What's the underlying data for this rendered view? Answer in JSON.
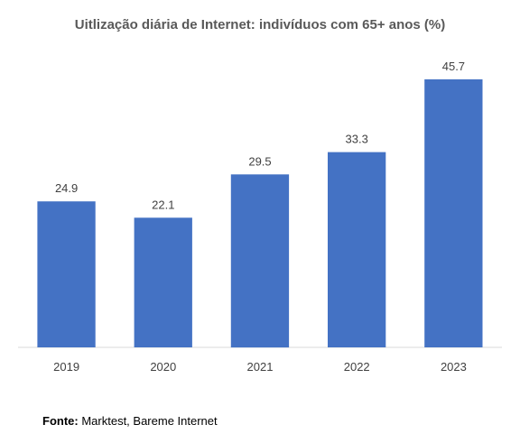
{
  "chart_data": {
    "type": "bar",
    "title": "Uitlização diária de Internet: indivíduos com 65+ anos (%)",
    "categories": [
      "2019",
      "2020",
      "2021",
      "2022",
      "2023"
    ],
    "values": [
      24.9,
      22.1,
      29.5,
      33.3,
      45.7
    ],
    "data_labels": [
      "24.9",
      "22.1",
      "29.5",
      "33.3",
      "45.7"
    ],
    "ylim": [
      0,
      50
    ],
    "grid": false,
    "legend": "none",
    "bar_color": "#4472C4"
  },
  "source": {
    "label": "Fonte:",
    "text": "Marktest, Bareme Internet"
  }
}
